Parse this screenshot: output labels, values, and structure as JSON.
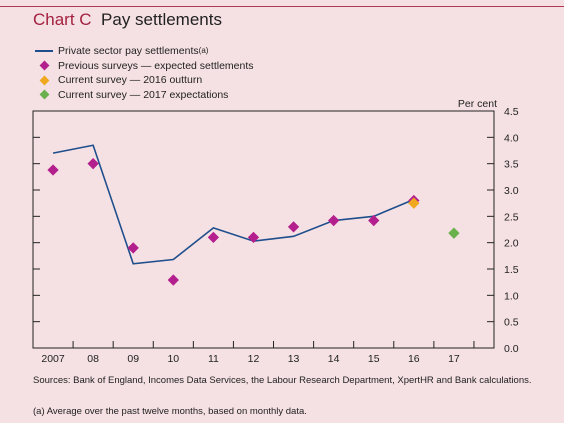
{
  "header": {
    "prefix": "Chart C",
    "title": "Pay settlements"
  },
  "legend": {
    "line_label": "Private sector pay settlements",
    "line_sup": "(a)",
    "prev_label": "Previous surveys — expected settlements",
    "outturn_label": "Current survey — 2016 outturn",
    "expect_label": "Current survey — 2017 expectations"
  },
  "footer": {
    "sources": "Sources: Bank of England, Incomes Data Services, the Labour Research Department, XpertHR and Bank calculations.",
    "note": "(a) Average over the past twelve months, based on monthly data."
  },
  "colors": {
    "line": "#1f4e8c",
    "prev": "#b41f8e",
    "outturn": "#f0a81e",
    "expect": "#6ab04c",
    "accent": "#a3213e"
  },
  "chart_data": {
    "type": "line",
    "title": "Pay settlements",
    "ylabel": "Per cent",
    "ylim": [
      0,
      4.5
    ],
    "xlim": [
      2006.5,
      2018
    ],
    "grid": false,
    "categories": [
      "2007",
      "08",
      "09",
      "10",
      "11",
      "12",
      "13",
      "14",
      "15",
      "16",
      "17"
    ],
    "yticks": [
      "0.0",
      "0.5",
      "1.0",
      "1.5",
      "2.0",
      "2.5",
      "3.0",
      "3.5",
      "4.0",
      "4.5"
    ],
    "legend_position": "top-left",
    "series": [
      {
        "name": "Private sector pay settlements",
        "kind": "line",
        "x": [
          2007.0,
          2008.0,
          2009.0,
          2010.0,
          2011.0,
          2012.0,
          2013.0,
          2014.0,
          2015.0,
          2016.0
        ],
        "y": [
          3.7,
          3.85,
          1.6,
          1.68,
          2.28,
          2.03,
          2.12,
          2.42,
          2.5,
          2.82
        ]
      },
      {
        "name": "Previous surveys — expected settlements",
        "kind": "points",
        "x": [
          2007.0,
          2008.0,
          2009.0,
          2010.0,
          2011.0,
          2012.0,
          2013.0,
          2014.0,
          2015.0,
          2016.0
        ],
        "y": [
          3.38,
          3.5,
          1.9,
          1.29,
          2.1,
          2.1,
          2.3,
          2.42,
          2.42,
          2.8
        ]
      },
      {
        "name": "Current survey — 2016 outturn",
        "kind": "points",
        "x": [
          2016.0
        ],
        "y": [
          2.75
        ]
      },
      {
        "name": "Current survey — 2017 expectations",
        "kind": "points",
        "x": [
          2017.0
        ],
        "y": [
          2.18
        ]
      }
    ]
  }
}
